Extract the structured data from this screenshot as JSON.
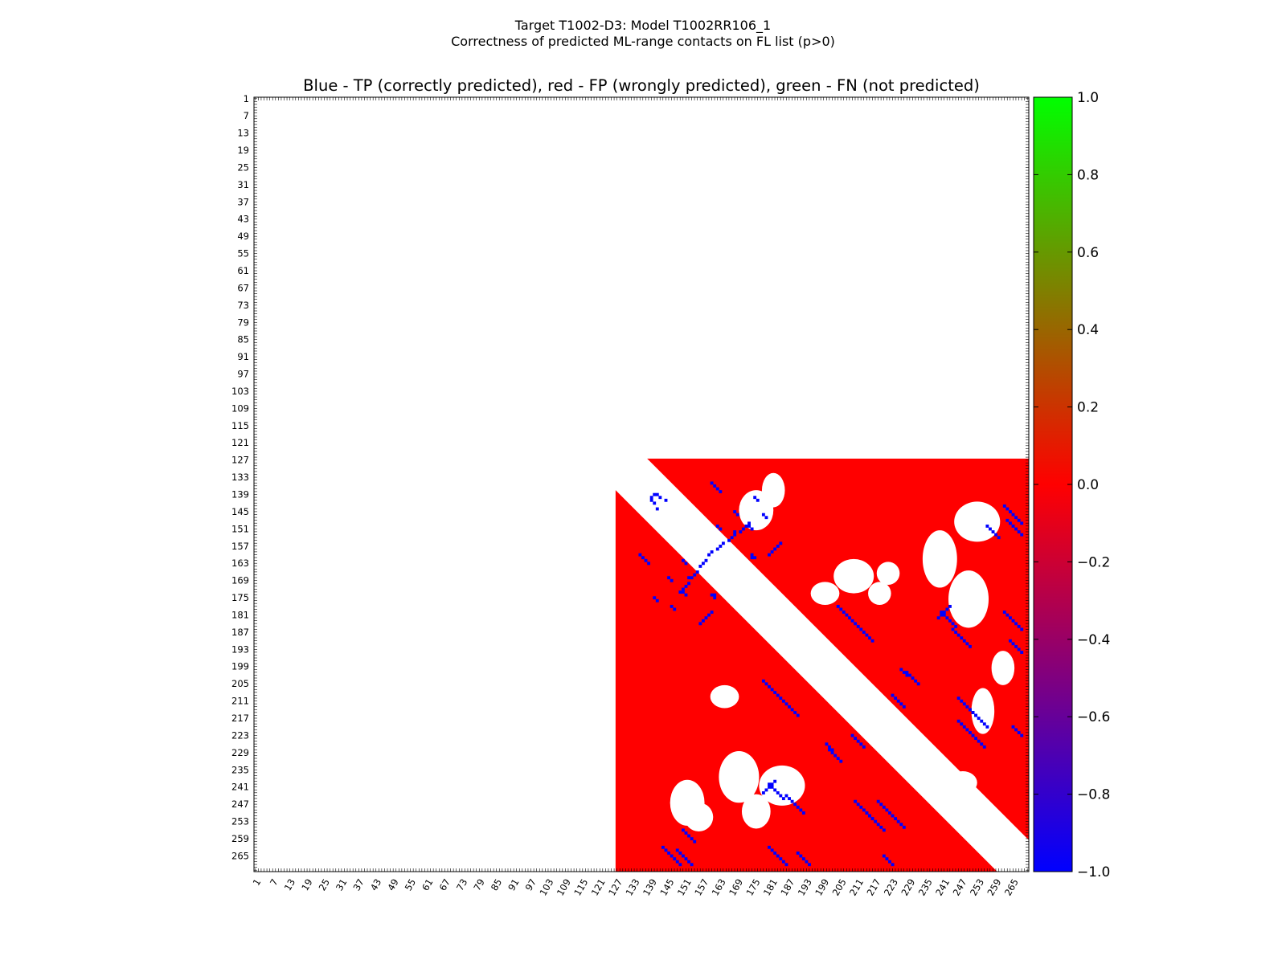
{
  "figure": {
    "title_line1": "Target T1002-D3: Model T1002RR106_1",
    "title_line2": "Correctness of predicted ML-range contacts on FL list (p>0)"
  },
  "chart_data": {
    "type": "heatmap",
    "title": "Blue - TP (correctly predicted), red - FP (wrongly predicted), green - FN (not predicted)",
    "residue_range": [
      1,
      270
    ],
    "x_tick_labels": [
      "1",
      "7",
      "13",
      "19",
      "25",
      "31",
      "37",
      "43",
      "49",
      "55",
      "61",
      "67",
      "73",
      "79",
      "85",
      "91",
      "97",
      "103",
      "109",
      "115",
      "121",
      "127",
      "133",
      "139",
      "145",
      "151",
      "157",
      "163",
      "169",
      "175",
      "181",
      "187",
      "193",
      "199",
      "205",
      "211",
      "217",
      "223",
      "229",
      "235",
      "241",
      "247",
      "253",
      "259",
      "265"
    ],
    "y_tick_labels": [
      "1",
      "7",
      "13",
      "19",
      "25",
      "31",
      "37",
      "43",
      "49",
      "55",
      "61",
      "67",
      "73",
      "79",
      "85",
      "91",
      "97",
      "103",
      "109",
      "115",
      "121",
      "127",
      "133",
      "139",
      "145",
      "151",
      "157",
      "163",
      "169",
      "175",
      "181",
      "187",
      "193",
      "199",
      "205",
      "211",
      "217",
      "223",
      "229",
      "235",
      "241",
      "247",
      "253",
      "259",
      "265"
    ],
    "domain_residues": [
      127,
      270
    ],
    "sequence_separation_excluded": 11,
    "colors": {
      "tp": "#0000ff",
      "fp": "#ff0000",
      "fn": "#00ff00",
      "background": "#ffffff"
    },
    "colorbar": {
      "range": [
        -1.0,
        1.0
      ],
      "tick_labels": [
        "1.0",
        "0.8",
        "0.6",
        "0.4",
        "0.2",
        "0.0",
        "−0.2",
        "−0.4",
        "−0.6",
        "−0.8",
        "−1.0"
      ],
      "tick_values": [
        1.0,
        0.8,
        0.6,
        0.4,
        0.2,
        0.0,
        -0.2,
        -0.4,
        -0.6,
        -0.8,
        -1.0
      ],
      "stops": [
        "#0000ff",
        "#ff0000",
        "#00ff00"
      ]
    },
    "tp_contacts": [
      [
        139,
        140
      ],
      [
        139,
        141
      ],
      [
        140,
        142
      ],
      [
        141,
        144
      ],
      [
        152,
        168
      ],
      [
        153,
        168
      ],
      [
        154,
        167
      ],
      [
        155,
        166
      ],
      [
        156,
        164
      ],
      [
        157,
        163
      ],
      [
        158,
        162
      ],
      [
        159,
        160
      ],
      [
        178,
        204
      ],
      [
        179,
        205
      ],
      [
        180,
        206
      ],
      [
        181,
        207
      ],
      [
        182,
        208
      ],
      [
        183,
        209
      ],
      [
        184,
        210
      ],
      [
        185,
        211
      ],
      [
        186,
        212
      ],
      [
        187,
        213
      ],
      [
        188,
        214
      ],
      [
        189,
        215
      ],
      [
        190,
        216
      ],
      [
        218,
        246
      ],
      [
        219,
        247
      ],
      [
        220,
        248
      ],
      [
        221,
        249
      ],
      [
        222,
        250
      ],
      [
        223,
        251
      ],
      [
        224,
        252
      ],
      [
        225,
        253
      ],
      [
        226,
        254
      ],
      [
        227,
        255
      ],
      [
        244,
        186
      ],
      [
        245,
        187
      ],
      [
        246,
        188
      ],
      [
        247,
        189
      ],
      [
        248,
        190
      ],
      [
        249,
        191
      ],
      [
        250,
        192
      ],
      [
        170,
        152
      ],
      [
        171,
        151
      ],
      [
        172,
        150
      ],
      [
        173,
        149
      ],
      [
        160,
        135
      ],
      [
        161,
        136
      ],
      [
        162,
        137
      ],
      [
        163,
        138
      ],
      [
        180,
        160
      ],
      [
        181,
        159
      ],
      [
        182,
        158
      ],
      [
        183,
        157
      ],
      [
        184,
        156
      ],
      [
        250,
        214
      ],
      [
        251,
        215
      ],
      [
        252,
        216
      ],
      [
        253,
        217
      ],
      [
        254,
        218
      ],
      [
        255,
        219
      ],
      [
        256,
        220
      ],
      [
        148,
        263
      ],
      [
        149,
        264
      ],
      [
        150,
        265
      ],
      [
        151,
        266
      ],
      [
        152,
        267
      ],
      [
        153,
        268
      ],
      [
        180,
        240
      ],
      [
        181,
        241
      ],
      [
        182,
        242
      ],
      [
        183,
        243
      ],
      [
        184,
        244
      ],
      [
        185,
        245
      ],
      [
        190,
        264
      ],
      [
        191,
        265
      ],
      [
        192,
        266
      ],
      [
        193,
        267
      ],
      [
        194,
        268
      ],
      [
        210,
        246
      ],
      [
        211,
        247
      ],
      [
        212,
        248
      ],
      [
        213,
        249
      ],
      [
        214,
        250
      ],
      [
        215,
        251
      ],
      [
        216,
        252
      ],
      [
        262,
        143
      ],
      [
        263,
        144
      ],
      [
        264,
        145
      ],
      [
        265,
        146
      ],
      [
        266,
        147
      ],
      [
        267,
        148
      ],
      [
        268,
        149
      ],
      [
        262,
        180
      ],
      [
        263,
        181
      ],
      [
        264,
        182
      ],
      [
        265,
        183
      ],
      [
        266,
        184
      ],
      [
        267,
        185
      ],
      [
        268,
        186
      ],
      [
        243,
        178
      ],
      [
        242,
        179
      ],
      [
        241,
        180
      ],
      [
        240,
        181
      ],
      [
        239,
        182
      ],
      [
        150,
        256
      ],
      [
        151,
        257
      ],
      [
        152,
        258
      ],
      [
        153,
        259
      ],
      [
        154,
        260
      ],
      [
        209,
        223
      ],
      [
        210,
        224
      ],
      [
        211,
        225
      ],
      [
        212,
        226
      ],
      [
        213,
        227
      ],
      [
        228,
        201
      ],
      [
        229,
        202
      ],
      [
        230,
        203
      ],
      [
        231,
        204
      ],
      [
        232,
        205
      ],
      [
        168,
        145
      ],
      [
        169,
        146
      ],
      [
        175,
        140
      ],
      [
        176,
        141
      ],
      [
        178,
        146
      ],
      [
        179,
        147
      ],
      [
        150,
        162
      ],
      [
        151,
        163
      ],
      [
        150,
        173
      ],
      [
        151,
        174
      ],
      [
        160,
        174
      ],
      [
        161,
        174
      ],
      [
        161,
        175
      ],
      [
        200,
        226
      ],
      [
        201,
        227
      ],
      [
        202,
        228
      ],
      [
        220,
        265
      ],
      [
        221,
        266
      ],
      [
        222,
        267
      ],
      [
        223,
        268
      ]
    ]
  }
}
